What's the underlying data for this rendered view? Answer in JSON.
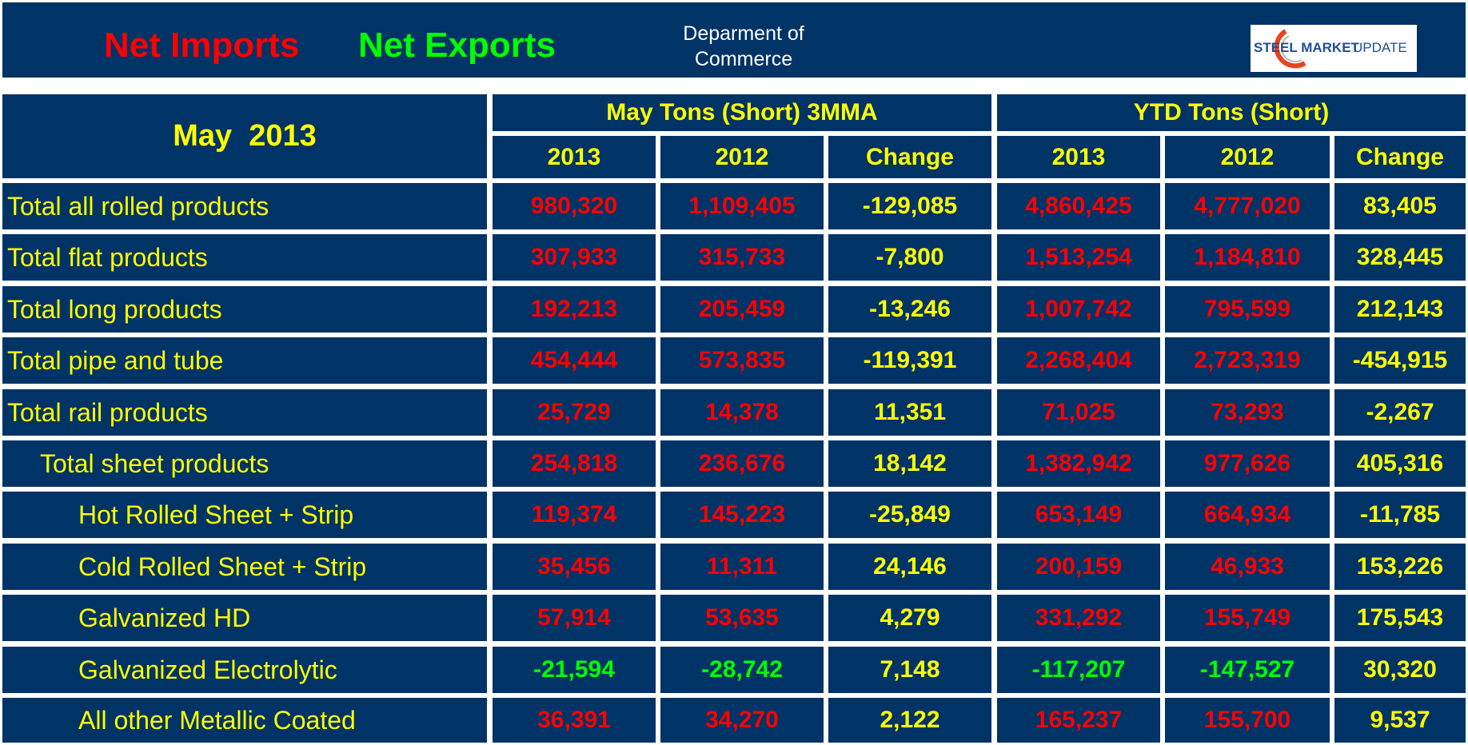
{
  "header": {
    "net_imports_label": "Net Imports",
    "net_exports_label": "Net Exports",
    "source_line1": "Deparment of",
    "source_line2": "Commerce",
    "logo_text_bold": "STEEL MARKET",
    "logo_text_light": "UPDATE"
  },
  "colors": {
    "background": "#003366",
    "grid": "#ffffff",
    "header_text": "#ffff00",
    "net_imports": "#ff0000",
    "net_exports": "#00ff00",
    "change": "#ffff00",
    "logo_blue": "#1f4e9a",
    "logo_orange": "#e8431e"
  },
  "chart_data": {
    "type": "table",
    "title": "May  2013",
    "group_headers": [
      "May Tons (Short) 3MMA",
      "YTD Tons (Short)"
    ],
    "columns": [
      "2013",
      "2012",
      "Change",
      "2013",
      "2012",
      "Change"
    ],
    "rows": [
      {
        "label": "Total all rolled products",
        "indent": 0,
        "values": [
          "980,320",
          "1,109,405",
          "-129,085",
          "4,860,425",
          "4,777,020",
          "83,405"
        ],
        "types": [
          "imp",
          "imp",
          "chg",
          "imp",
          "imp",
          "chg"
        ]
      },
      {
        "label": "Total flat products",
        "indent": 0,
        "values": [
          "307,933",
          "315,733",
          "-7,800",
          "1,513,254",
          "1,184,810",
          "328,445"
        ],
        "types": [
          "imp",
          "imp",
          "chg",
          "imp",
          "imp",
          "chg"
        ]
      },
      {
        "label": "Total long products",
        "indent": 0,
        "values": [
          "192,213",
          "205,459",
          "-13,246",
          "1,007,742",
          "795,599",
          "212,143"
        ],
        "types": [
          "imp",
          "imp",
          "chg",
          "imp",
          "imp",
          "chg"
        ]
      },
      {
        "label": "Total pipe and tube",
        "indent": 0,
        "values": [
          "454,444",
          "573,835",
          "-119,391",
          "2,268,404",
          "2,723,319",
          "-454,915"
        ],
        "types": [
          "imp",
          "imp",
          "chg",
          "imp",
          "imp",
          "chg"
        ]
      },
      {
        "label": "Total rail products",
        "indent": 0,
        "values": [
          "25,729",
          "14,378",
          "11,351",
          "71,025",
          "73,293",
          "-2,267"
        ],
        "types": [
          "imp",
          "imp",
          "chg",
          "imp",
          "imp",
          "chg"
        ]
      },
      {
        "label": "Total sheet products",
        "indent": 1,
        "values": [
          "254,818",
          "236,676",
          "18,142",
          "1,382,942",
          "977,626",
          "405,316"
        ],
        "types": [
          "imp",
          "imp",
          "chg",
          "imp",
          "imp",
          "chg"
        ]
      },
      {
        "label": "Hot Rolled Sheet + Strip",
        "indent": 2,
        "values": [
          "119,374",
          "145,223",
          "-25,849",
          "653,149",
          "664,934",
          "-11,785"
        ],
        "types": [
          "imp",
          "imp",
          "chg",
          "imp",
          "imp",
          "chg"
        ]
      },
      {
        "label": "Cold Rolled Sheet + Strip",
        "indent": 2,
        "values": [
          "35,456",
          "11,311",
          "24,146",
          "200,159",
          "46,933",
          "153,226"
        ],
        "types": [
          "imp",
          "imp",
          "chg",
          "imp",
          "imp",
          "chg"
        ]
      },
      {
        "label": "Galvanized HD",
        "indent": 2,
        "values": [
          "57,914",
          "53,635",
          "4,279",
          "331,292",
          "155,749",
          "175,543"
        ],
        "types": [
          "imp",
          "imp",
          "chg",
          "imp",
          "imp",
          "chg"
        ]
      },
      {
        "label": "Galvanized Electrolytic",
        "indent": 2,
        "values": [
          "-21,594",
          "-28,742",
          "7,148",
          "-117,207",
          "-147,527",
          "30,320"
        ],
        "types": [
          "exp",
          "exp",
          "chg",
          "exp",
          "exp",
          "chg"
        ]
      },
      {
        "label": "All other Metallic Coated",
        "indent": 2,
        "values": [
          "36,391",
          "34,270",
          "2,122",
          "165,237",
          "155,700",
          "9,537"
        ],
        "types": [
          "imp",
          "imp",
          "chg",
          "imp",
          "imp",
          "chg"
        ]
      }
    ]
  }
}
